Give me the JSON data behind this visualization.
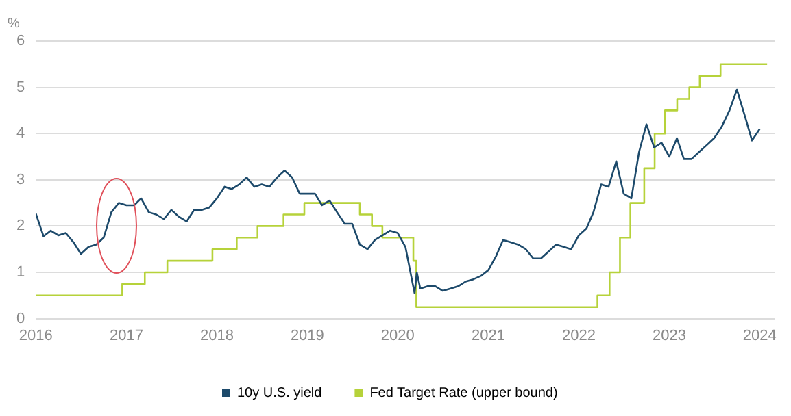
{
  "chart_data": {
    "type": "line",
    "ylabel": "%",
    "xlim": [
      "2016",
      "2024-03"
    ],
    "xticks": [
      "2016",
      "2017",
      "2018",
      "2019",
      "2020",
      "2021",
      "2022",
      "2023",
      "2024"
    ],
    "ylim": [
      0,
      6
    ],
    "yticks": [
      0,
      1,
      2,
      3,
      4,
      5,
      6
    ],
    "grid": "y",
    "legend": "bottom",
    "marker": "none",
    "line_style": "solid",
    "series": [
      {
        "name": "10y U.S. yield",
        "color": "#1d4a6b",
        "x": [
          "2016-01",
          "2016-02",
          "2016-03",
          "2016-04",
          "2016-05",
          "2016-06",
          "2016-07",
          "2016-08",
          "2016-09",
          "2016-10",
          "2016-11",
          "2016-12",
          "2017-01",
          "2017-02",
          "2017-03",
          "2017-04",
          "2017-05",
          "2017-06",
          "2017-07",
          "2017-08",
          "2017-09",
          "2017-10",
          "2017-11",
          "2017-12",
          "2018-01",
          "2018-02",
          "2018-03",
          "2018-04",
          "2018-05",
          "2018-06",
          "2018-07",
          "2018-08",
          "2018-09",
          "2018-10",
          "2018-11",
          "2018-12",
          "2019-01",
          "2019-02",
          "2019-03",
          "2019-04",
          "2019-05",
          "2019-06",
          "2019-07",
          "2019-08",
          "2019-09",
          "2019-10",
          "2019-11",
          "2019-12",
          "2020-01",
          "2020-02",
          "2020-03-09",
          "2020-03-18",
          "2020-04",
          "2020-05",
          "2020-06",
          "2020-07",
          "2020-08",
          "2020-09",
          "2020-10",
          "2020-11",
          "2020-12",
          "2021-01",
          "2021-02",
          "2021-03",
          "2021-04",
          "2021-05",
          "2021-06",
          "2021-07",
          "2021-08",
          "2021-09",
          "2021-10",
          "2021-11",
          "2021-12",
          "2022-01",
          "2022-02",
          "2022-03",
          "2022-04",
          "2022-05",
          "2022-06",
          "2022-07",
          "2022-08",
          "2022-09",
          "2022-10",
          "2022-11",
          "2022-12",
          "2023-01",
          "2023-02",
          "2023-03",
          "2023-04",
          "2023-05",
          "2023-06",
          "2023-07",
          "2023-08",
          "2023-09",
          "2023-10",
          "2023-11",
          "2023-12",
          "2024-01"
        ],
        "values": [
          2.27,
          1.78,
          1.9,
          1.8,
          1.85,
          1.65,
          1.4,
          1.55,
          1.6,
          1.75,
          2.3,
          2.5,
          2.45,
          2.45,
          2.6,
          2.3,
          2.25,
          2.15,
          2.35,
          2.2,
          2.1,
          2.35,
          2.35,
          2.4,
          2.6,
          2.85,
          2.8,
          2.9,
          3.05,
          2.85,
          2.9,
          2.85,
          3.05,
          3.2,
          3.05,
          2.7,
          2.7,
          2.7,
          2.45,
          2.55,
          2.3,
          2.05,
          2.05,
          1.6,
          1.5,
          1.7,
          1.8,
          1.9,
          1.85,
          1.55,
          0.55,
          1.0,
          0.65,
          0.7,
          0.7,
          0.6,
          0.65,
          0.7,
          0.8,
          0.85,
          0.92,
          1.05,
          1.35,
          1.7,
          1.65,
          1.6,
          1.5,
          1.3,
          1.3,
          1.45,
          1.6,
          1.55,
          1.5,
          1.8,
          1.95,
          2.3,
          2.9,
          2.85,
          3.4,
          2.7,
          2.6,
          3.6,
          4.2,
          3.7,
          3.8,
          3.5,
          3.9,
          3.45,
          3.45,
          3.6,
          3.75,
          3.9,
          4.15,
          4.5,
          4.95,
          4.4,
          3.85,
          4.1
        ]
      },
      {
        "name": "Fed Target Rate (upper bound)",
        "type": "step",
        "color": "#b6d23a",
        "x": [
          "2016-01",
          "2016-12-15",
          "2017-03-16",
          "2017-06-15",
          "2017-12-14",
          "2018-03-22",
          "2018-06-14",
          "2018-09-27",
          "2018-12-20",
          "2019-08-01",
          "2019-09-19",
          "2019-10-31",
          "2020-03-04",
          "2020-03-16",
          "2022-03-17",
          "2022-05-05",
          "2022-06-16",
          "2022-07-28",
          "2022-09-22",
          "2022-11-03",
          "2022-12-15",
          "2023-02-02",
          "2023-03-23",
          "2023-05-04",
          "2023-07-27",
          "2024-01-31"
        ],
        "values": [
          0.5,
          0.75,
          1.0,
          1.25,
          1.5,
          1.75,
          2.0,
          2.25,
          2.5,
          2.25,
          2.0,
          1.75,
          1.25,
          0.25,
          0.5,
          1.0,
          1.75,
          2.5,
          3.25,
          4.0,
          4.5,
          4.75,
          5.0,
          5.25,
          5.5,
          5.5
        ]
      }
    ]
  }
}
